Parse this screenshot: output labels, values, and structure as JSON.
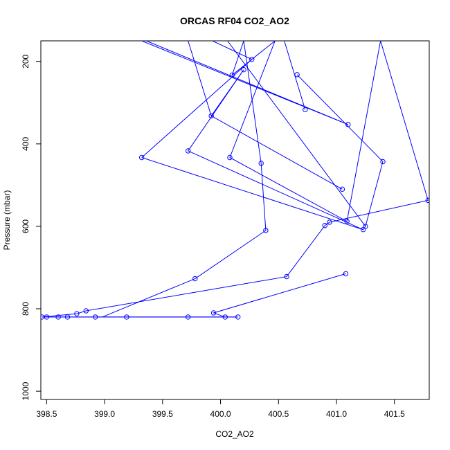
{
  "chart_data": {
    "type": "line",
    "title": "ORCAS RF04 CO2_AO2",
    "xlabel": "CO2_AO2",
    "ylabel": "Pressure (mbar)",
    "xlim": [
      398.45,
      401.8
    ],
    "ylim": [
      1020,
      150
    ],
    "y_reversed": true,
    "grid": false,
    "xticks": [
      398.5,
      399.0,
      399.5,
      400.0,
      400.5,
      401.0,
      401.5
    ],
    "xtick_labels": [
      "398.5",
      "399.0",
      "399.5",
      "400.0",
      "400.5",
      "401.0",
      "401.5"
    ],
    "yticks": [
      200,
      400,
      600,
      800,
      1000
    ],
    "ytick_labels": [
      "200",
      "400",
      "600",
      "800",
      "1000"
    ],
    "series": [
      {
        "color": "#0000ff",
        "marker": "open-circle",
        "points": [
          {
            "x": 401.08,
            "y": 715,
            "marker": true
          },
          {
            "x": 399.94,
            "y": 810,
            "marker": true
          },
          {
            "x": 400.04,
            "y": 820,
            "marker": true
          },
          {
            "x": 400.15,
            "y": 820,
            "marker": true
          },
          {
            "x": 399.72,
            "y": 820,
            "marker": true
          },
          {
            "x": 399.19,
            "y": 820,
            "marker": true
          },
          {
            "x": 398.92,
            "y": 820,
            "marker": true
          },
          {
            "x": 398.68,
            "y": 820,
            "marker": true
          },
          {
            "x": 398.6,
            "y": 820,
            "marker": true
          },
          {
            "x": 398.5,
            "y": 820,
            "marker": true
          },
          {
            "x": 398.46,
            "y": 820,
            "marker": true
          },
          {
            "x": 398.76,
            "y": 812,
            "marker": true
          },
          {
            "x": 398.84,
            "y": 805,
            "marker": true
          },
          {
            "x": 400.57,
            "y": 722,
            "marker": true
          },
          {
            "x": 400.9,
            "y": 598,
            "marker": true
          },
          {
            "x": 400.94,
            "y": 590,
            "marker": true
          },
          {
            "x": 401.79,
            "y": 537,
            "marker": true
          },
          {
            "x": 401.38,
            "y": 150,
            "marker": false
          },
          {
            "x": 401.09,
            "y": 588,
            "marker": true
          },
          {
            "x": 400.08,
            "y": 433,
            "marker": true
          },
          {
            "x": 400.47,
            "y": 150,
            "marker": false
          },
          {
            "x": 400.1,
            "y": 233,
            "marker": true
          },
          {
            "x": 400.2,
            "y": 150,
            "marker": false
          },
          {
            "x": 400.35,
            "y": 447,
            "marker": true
          },
          {
            "x": 400.39,
            "y": 610,
            "marker": true
          },
          {
            "x": 399.78,
            "y": 727,
            "marker": true
          },
          {
            "x": 398.98,
            "y": 820,
            "marker": false
          }
        ]
      },
      {
        "color": "#0000ff",
        "marker": "open-circle",
        "points": [
          {
            "x": 399.36,
            "y": 150,
            "marker": false
          },
          {
            "x": 401.1,
            "y": 353,
            "marker": true
          },
          {
            "x": 399.32,
            "y": 150,
            "marker": false
          }
        ]
      },
      {
        "color": "#0000ff",
        "marker": "open-circle",
        "points": [
          {
            "x": 399.32,
            "y": 433,
            "marker": true
          },
          {
            "x": 400.27,
            "y": 195,
            "marker": true
          },
          {
            "x": 399.93,
            "y": 150,
            "marker": false
          }
        ]
      },
      {
        "color": "#0000ff",
        "marker": "open-circle",
        "points": [
          {
            "x": 399.72,
            "y": 150,
            "marker": false
          },
          {
            "x": 399.92,
            "y": 332,
            "marker": true
          },
          {
            "x": 400.2,
            "y": 220,
            "marker": true
          },
          {
            "x": 399.72,
            "y": 417,
            "marker": true
          },
          {
            "x": 401.23,
            "y": 608,
            "marker": true
          },
          {
            "x": 401.25,
            "y": 600,
            "marker": true
          },
          {
            "x": 400.06,
            "y": 150,
            "marker": false
          }
        ]
      },
      {
        "color": "#0000ff",
        "marker": "open-circle",
        "points": [
          {
            "x": 399.32,
            "y": 433,
            "marker": false
          },
          {
            "x": 401.23,
            "y": 608,
            "marker": false
          }
        ]
      },
      {
        "color": "#0000ff",
        "marker": "open-circle",
        "points": [
          {
            "x": 400.55,
            "y": 150,
            "marker": false
          },
          {
            "x": 400.73,
            "y": 317,
            "marker": true
          },
          {
            "x": 400.55,
            "y": 150,
            "marker": false
          }
        ]
      },
      {
        "color": "#0000ff",
        "marker": "open-circle",
        "points": [
          {
            "x": 399.92,
            "y": 332,
            "marker": false
          },
          {
            "x": 401.05,
            "y": 510,
            "marker": true
          }
        ]
      },
      {
        "color": "#0000ff",
        "marker": "open-circle",
        "points": [
          {
            "x": 400.66,
            "y": 232,
            "marker": true
          },
          {
            "x": 401.4,
            "y": 443,
            "marker": true
          },
          {
            "x": 401.25,
            "y": 600,
            "marker": false
          }
        ]
      },
      {
        "color": "#0000ff",
        "marker": "open-circle",
        "points": [
          {
            "x": 400.15,
            "y": 820,
            "marker": false
          },
          {
            "x": 398.46,
            "y": 820,
            "marker": false
          }
        ]
      }
    ]
  }
}
